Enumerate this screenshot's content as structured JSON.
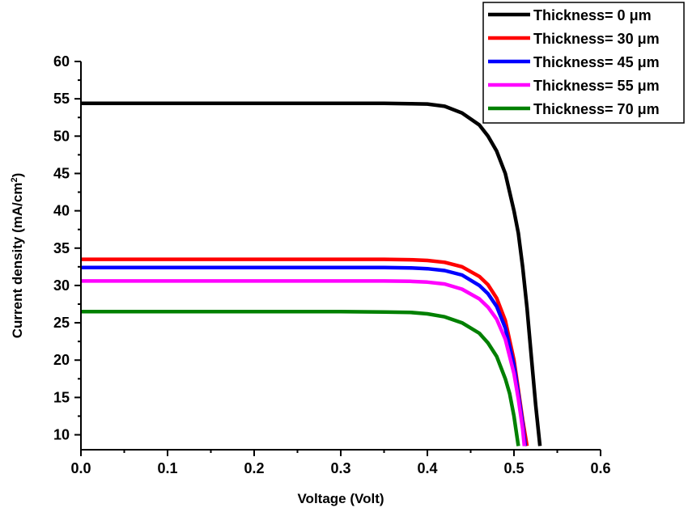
{
  "chart_data": {
    "type": "line",
    "xlabel": "Voltage (Volt)",
    "ylabel_main": "Current density (mA/cm",
    "ylabel_sup": "2",
    "ylabel_close": ")",
    "xlim": [
      0.0,
      0.6
    ],
    "ylim": [
      8,
      60
    ],
    "x_ticks": [
      0.0,
      0.1,
      0.2,
      0.3,
      0.4,
      0.5,
      0.6
    ],
    "x_tick_labels": [
      "0.0",
      "0.1",
      "0.2",
      "0.3",
      "0.4",
      "0.5",
      "0.6"
    ],
    "y_ticks": [
      10,
      15,
      20,
      25,
      30,
      35,
      40,
      45,
      50,
      55,
      60
    ],
    "y_tick_labels": [
      "10",
      "15",
      "20",
      "25",
      "30",
      "35",
      "40",
      "45",
      "50",
      "55",
      "60"
    ],
    "legend_position": "top-right",
    "series": [
      {
        "name": "Thickness= 0 μm",
        "color": "#000000",
        "x": [
          0.0,
          0.1,
          0.2,
          0.3,
          0.35,
          0.38,
          0.4,
          0.42,
          0.44,
          0.46,
          0.47,
          0.48,
          0.49,
          0.5,
          0.505,
          0.51,
          0.515,
          0.52,
          0.525,
          0.53
        ],
        "y": [
          54.4,
          54.4,
          54.4,
          54.4,
          54.4,
          54.35,
          54.3,
          54.0,
          53.1,
          51.5,
          50.0,
          48.0,
          45.0,
          40.0,
          37.0,
          32.5,
          27.0,
          20.5,
          14.0,
          8.5
        ]
      },
      {
        "name": "Thickness= 30 μm",
        "color": "#ff0000",
        "x": [
          0.0,
          0.1,
          0.2,
          0.3,
          0.35,
          0.38,
          0.4,
          0.42,
          0.44,
          0.46,
          0.47,
          0.48,
          0.49,
          0.5,
          0.505,
          0.51,
          0.515
        ],
        "y": [
          33.5,
          33.5,
          33.5,
          33.5,
          33.5,
          33.45,
          33.35,
          33.1,
          32.5,
          31.2,
          30.1,
          28.3,
          25.3,
          20.0,
          16.0,
          12.0,
          8.5
        ]
      },
      {
        "name": "Thickness= 45 μm",
        "color": "#0000ff",
        "x": [
          0.0,
          0.1,
          0.2,
          0.3,
          0.35,
          0.38,
          0.4,
          0.42,
          0.44,
          0.46,
          0.47,
          0.48,
          0.49,
          0.5,
          0.505,
          0.51,
          0.513
        ],
        "y": [
          32.4,
          32.4,
          32.4,
          32.4,
          32.4,
          32.35,
          32.25,
          32.0,
          31.4,
          30.0,
          28.9,
          27.2,
          24.3,
          19.3,
          15.5,
          11.5,
          8.5
        ]
      },
      {
        "name": "Thickness= 55 μm",
        "color": "#ff00ff",
        "x": [
          0.0,
          0.1,
          0.2,
          0.3,
          0.35,
          0.38,
          0.4,
          0.42,
          0.44,
          0.46,
          0.47,
          0.48,
          0.49,
          0.5,
          0.505,
          0.51,
          0.512
        ],
        "y": [
          30.6,
          30.6,
          30.6,
          30.6,
          30.6,
          30.55,
          30.45,
          30.2,
          29.5,
          28.2,
          27.1,
          25.5,
          22.8,
          18.2,
          14.8,
          10.8,
          8.5
        ]
      },
      {
        "name": "Thickness= 70 μm",
        "color": "#008000",
        "x": [
          0.0,
          0.1,
          0.2,
          0.3,
          0.35,
          0.38,
          0.4,
          0.42,
          0.44,
          0.46,
          0.47,
          0.48,
          0.49,
          0.495,
          0.5,
          0.505
        ],
        "y": [
          26.5,
          26.5,
          26.5,
          26.5,
          26.45,
          26.4,
          26.2,
          25.8,
          25.0,
          23.6,
          22.3,
          20.5,
          17.5,
          15.5,
          12.5,
          8.5
        ]
      }
    ]
  }
}
